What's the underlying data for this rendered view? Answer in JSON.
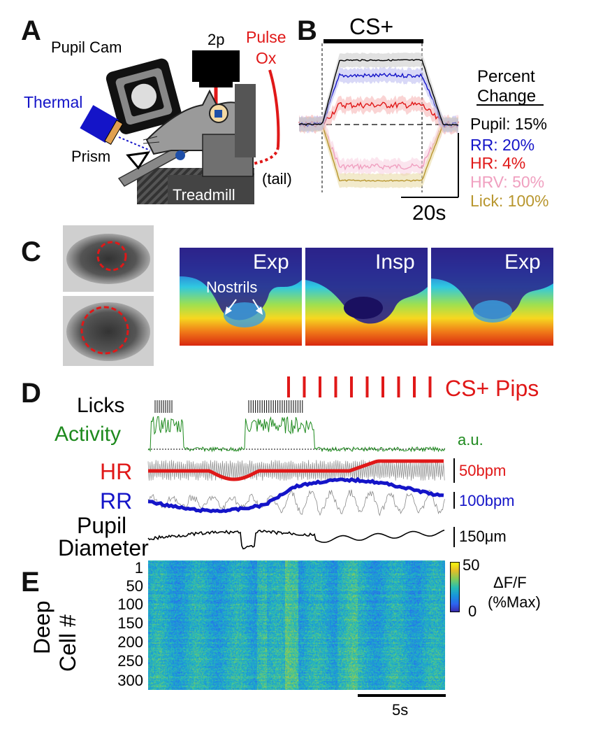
{
  "panels": {
    "a": "A",
    "b": "B",
    "c": "C",
    "d": "D",
    "e": "E"
  },
  "panel_a": {
    "pupil_cam": "Pupil Cam",
    "twop": "2p",
    "pulse": "Pulse",
    "ox": "Ox",
    "thermal": "Thermal",
    "prism": "Prism",
    "treadmill": "Treadmill",
    "tail": "(tail)"
  },
  "panel_b": {
    "cs_label": "CS+",
    "percent": "Percent",
    "change": "Change",
    "scale_bar": "20s",
    "legend": [
      {
        "text": "Pupil: 15%",
        "color": "#000000"
      },
      {
        "text": "RR: 20%",
        "color": "#1414c8"
      },
      {
        "text": "HR: 4%",
        "color": "#e01818"
      },
      {
        "text": "HRV: 50%",
        "color": "#f0a0c0"
      },
      {
        "text": "Lick: 100%",
        "color": "#b8962e"
      }
    ]
  },
  "panel_c": {
    "thermal_labels": [
      "Exp",
      "Insp",
      "Exp"
    ],
    "nostrils": "Nostrils"
  },
  "panel_d": {
    "cs_pips": "CS+ Pips",
    "licks": "Licks",
    "activity": "Activity",
    "au": "a.u.",
    "hr": "HR",
    "hr_scale": "50bpm",
    "rr": "RR",
    "rr_scale": "100bpm",
    "pupil1": "Pupil",
    "pupil2": "Diameter",
    "pupil_scale": "150μm"
  },
  "panel_e": {
    "ylabel1": "Deep",
    "ylabel2": "Cell #",
    "yticks": [
      "1",
      "50",
      "100",
      "150",
      "200",
      "250",
      "300"
    ],
    "cbar_max": "50",
    "cbar_min": "0",
    "cbar_label1": "ΔF/F",
    "cbar_label2": "(%Max)",
    "scale_bar": "5s"
  },
  "colors": {
    "hr": "#e01818",
    "rr": "#1414c8",
    "activity": "#1e8a1e",
    "lick": "#b8962e",
    "hrv": "#f0a0c0"
  }
}
